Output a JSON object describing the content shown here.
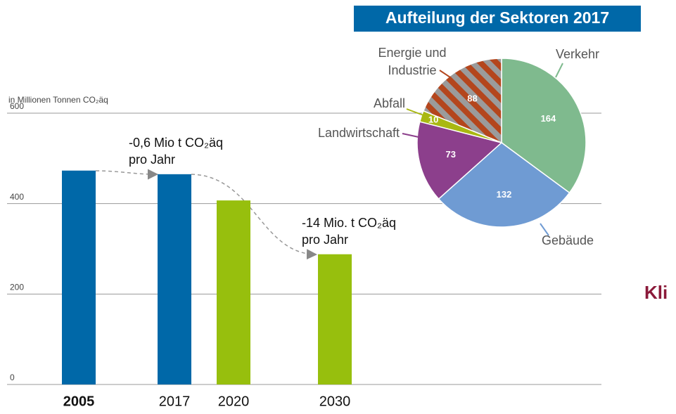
{
  "chart_data": [
    {
      "type": "bar",
      "y_axis_label": "in Millionen Tonnen CO₂äq",
      "categories": [
        "2005",
        "2017",
        "2020",
        "2030"
      ],
      "values": [
        473,
        465,
        407,
        288
      ],
      "colors": [
        "#0068a8",
        "#0068a8",
        "#97bf0d",
        "#97bf0d"
      ],
      "ylim": [
        0,
        600
      ],
      "yticks": [
        0,
        200,
        400,
        600
      ],
      "grid": true,
      "annotations": [
        [
          "-0,6 Mio t CO₂äq",
          "pro Jahr"
        ],
        [
          "-14 Mio. t CO₂äq",
          "pro Jahr"
        ]
      ]
    },
    {
      "type": "pie",
      "title": "Aufteilung der Sektoren 2017",
      "categories": [
        "Verkehr",
        "Gebäude",
        "Landwirtschaft",
        "Abfall",
        "Energie und Industrie"
      ],
      "values": [
        164,
        132,
        73,
        10,
        88
      ],
      "colors": [
        "#7fba8e",
        "#6f9bd3",
        "#8c3f8c",
        "#a9b812",
        "#b4461d"
      ]
    }
  ],
  "side_text": "Kli"
}
